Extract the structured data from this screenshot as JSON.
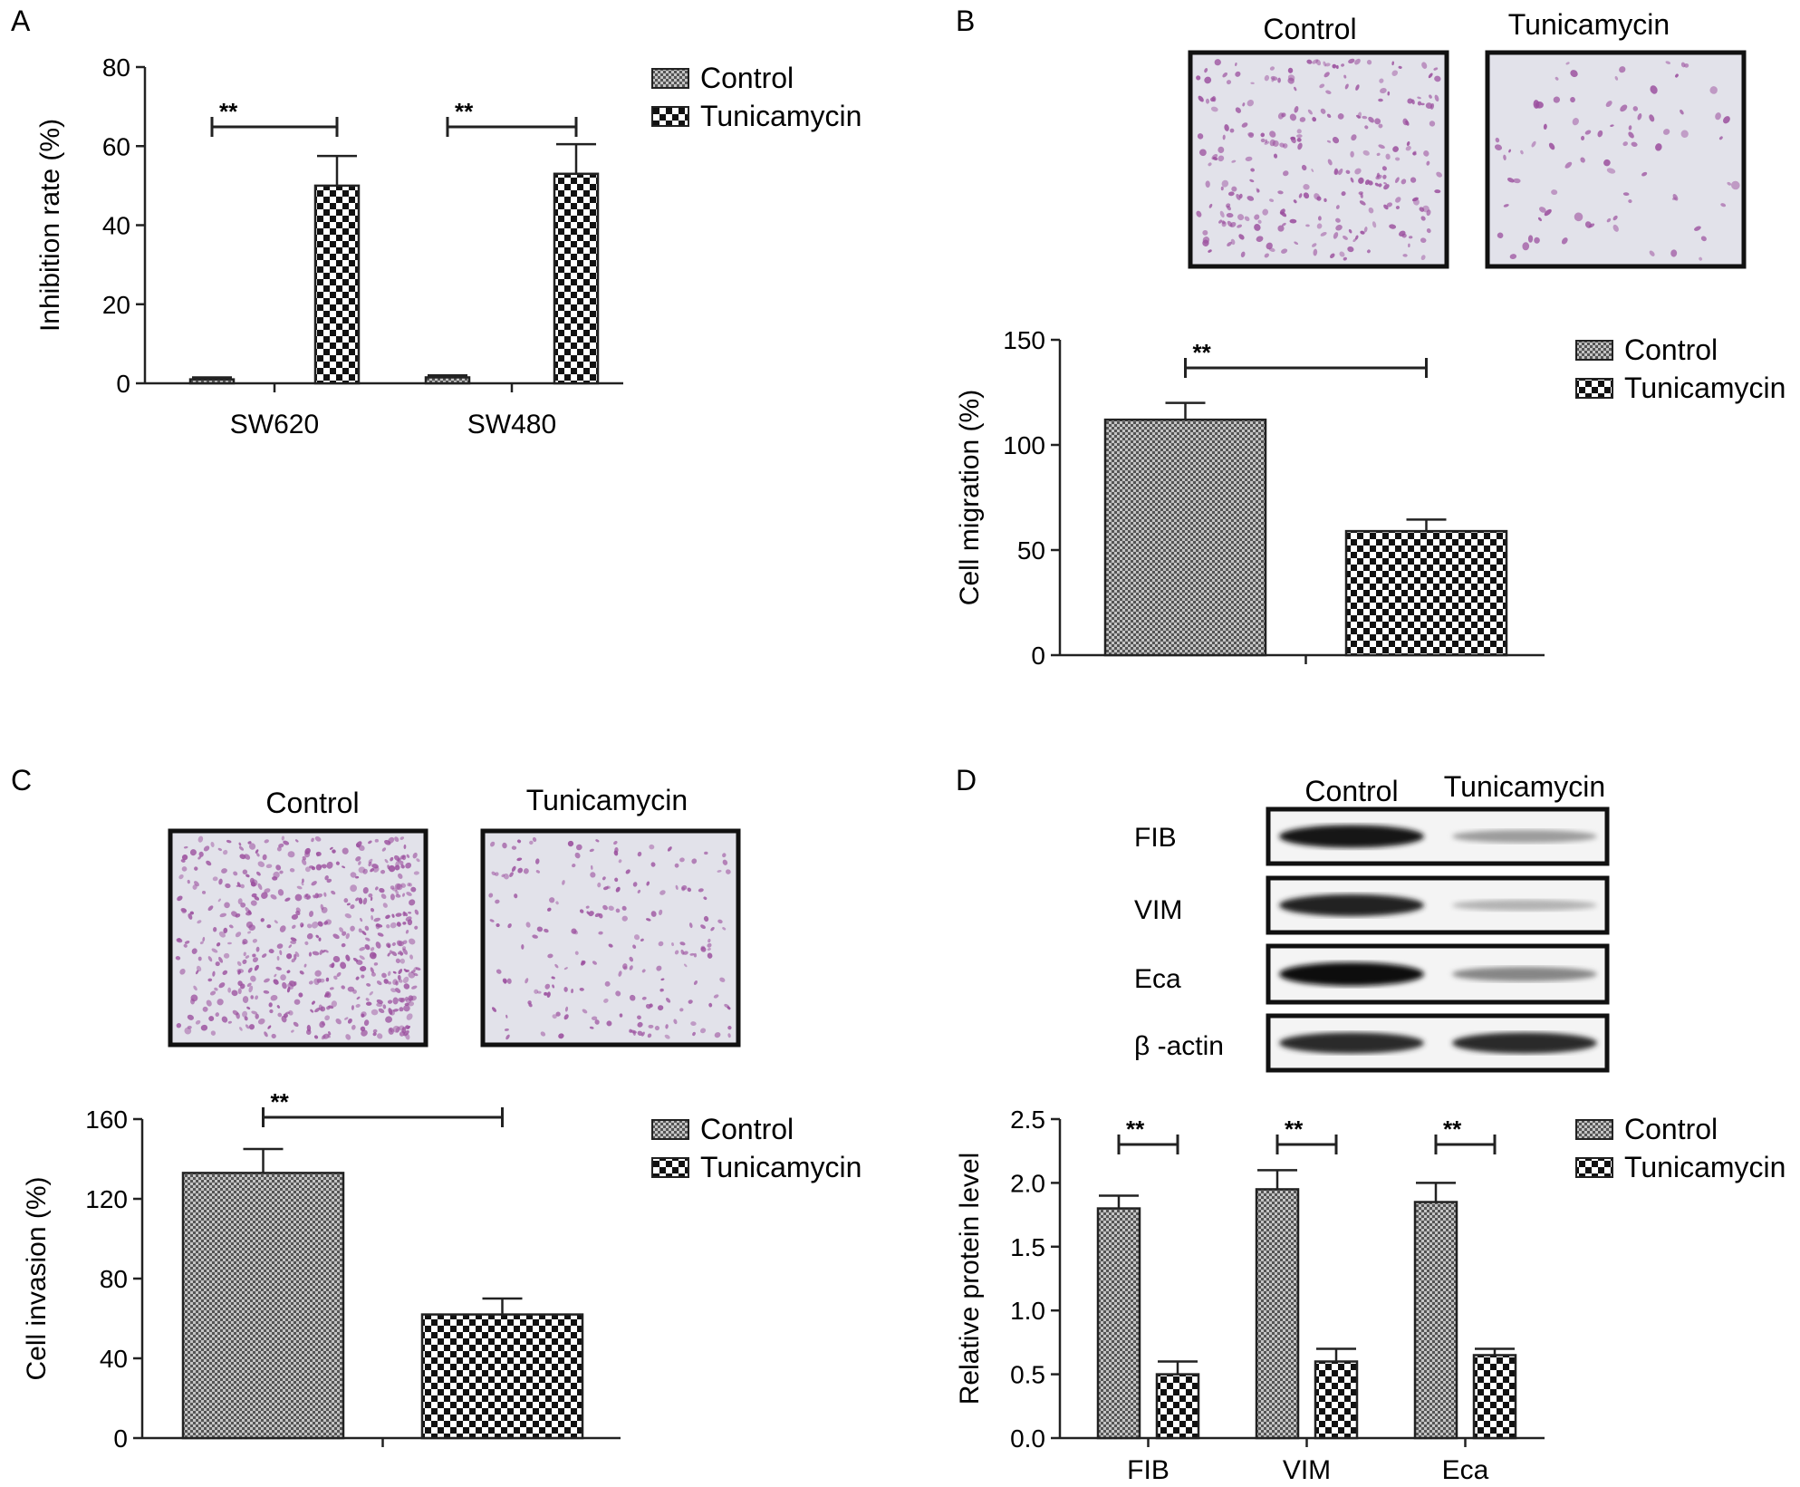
{
  "colors": {
    "ink": "#222222",
    "cell_stain": "#9b4f9e",
    "microscope_bg": "#e3e3ea",
    "control_pattern": "#666666",
    "treatment_pattern": "#111111"
  },
  "panels": {
    "A": {
      "label": "A"
    },
    "B": {
      "label": "B",
      "images": [
        "Control",
        "Tunicamycin"
      ]
    },
    "C": {
      "label": "C",
      "images": [
        "Control",
        "Tunicamycin"
      ]
    },
    "D": {
      "label": "D",
      "blot": {
        "columns": [
          "Control",
          "Tunicamycin"
        ],
        "rows": [
          "FIB",
          "VIM",
          "Eca",
          "β -actin"
        ],
        "band_intensity": [
          [
            0.95,
            0.35
          ],
          [
            0.9,
            0.25
          ],
          [
            1.0,
            0.45
          ],
          [
            0.85,
            0.85
          ]
        ]
      }
    }
  },
  "chart_data": [
    {
      "panel": "A",
      "type": "bar",
      "categories": [
        "SW620",
        "SW480"
      ],
      "series": [
        {
          "name": "Control",
          "values": [
            1,
            1.5
          ],
          "errors": [
            0.5,
            0.5
          ]
        },
        {
          "name": "Tunicamycin",
          "values": [
            50,
            53
          ],
          "errors": [
            7.5,
            7.5
          ]
        }
      ],
      "ylabel": "Inhibition rate (%)",
      "ylim": [
        0,
        80
      ],
      "yticks": [
        "0",
        "20",
        "40",
        "60",
        "80"
      ],
      "significance": [
        "**",
        "**"
      ],
      "legend": "top-right"
    },
    {
      "panel": "B",
      "type": "bar",
      "categories": [
        ""
      ],
      "series": [
        {
          "name": "Control",
          "values": [
            112
          ],
          "errors": [
            8
          ]
        },
        {
          "name": "Tunicamycin",
          "values": [
            59
          ],
          "errors": [
            5.5
          ]
        }
      ],
      "ylabel": "Cell migration (%)",
      "ylim": [
        0,
        150
      ],
      "yticks": [
        "0",
        "50",
        "100",
        "150"
      ],
      "significance": [
        "**"
      ],
      "legend": "top-right"
    },
    {
      "panel": "C",
      "type": "bar",
      "categories": [
        ""
      ],
      "series": [
        {
          "name": "Control",
          "values": [
            133
          ],
          "errors": [
            12
          ]
        },
        {
          "name": "Tunicamycin",
          "values": [
            62
          ],
          "errors": [
            8
          ]
        }
      ],
      "ylabel": "Cell invasion (%)",
      "ylim": [
        0,
        160
      ],
      "yticks": [
        "0",
        "40",
        "80",
        "120",
        "160"
      ],
      "significance": [
        "**"
      ],
      "legend": "top-right"
    },
    {
      "panel": "D",
      "type": "bar",
      "categories": [
        "FIB",
        "VIM",
        "Eca"
      ],
      "series": [
        {
          "name": "Control",
          "values": [
            1.8,
            1.95,
            1.85
          ],
          "errors": [
            0.1,
            0.15,
            0.15
          ]
        },
        {
          "name": "Tunicamycin",
          "values": [
            0.5,
            0.6,
            0.65
          ],
          "errors": [
            0.1,
            0.1,
            0.05
          ]
        }
      ],
      "ylabel": "Relative protein level",
      "ylim": [
        0,
        2.5
      ],
      "yticks": [
        "0.0",
        "0.5",
        "1.0",
        "1.5",
        "2.0",
        "2.5"
      ],
      "significance": [
        "**",
        "**",
        "**"
      ],
      "legend": "top-right"
    }
  ]
}
